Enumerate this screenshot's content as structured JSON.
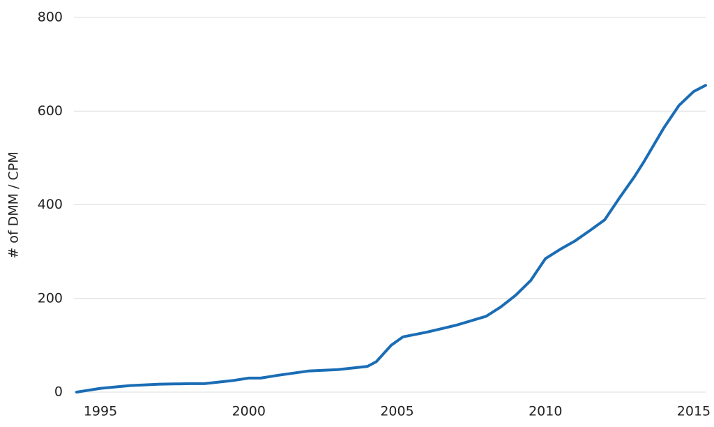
{
  "chart_data": {
    "type": "line",
    "y_label": "# of DMM / CPM",
    "x": [
      1994.2,
      1995,
      1996,
      1997,
      1998,
      1998.5,
      1999.5,
      2000,
      2000.4,
      2001,
      2002,
      2003,
      2004,
      2004.3,
      2004.8,
      2005.2,
      2006,
      2007,
      2008,
      2008.5,
      2009,
      2009.5,
      2010,
      2010.5,
      2011,
      2011.5,
      2012,
      2012.5,
      2013,
      2013.3,
      2014,
      2014.5,
      2015,
      2015.4
    ],
    "series": [
      {
        "color": "#1a6db5",
        "values": [
          0,
          8,
          14,
          17,
          18,
          18,
          25,
          30,
          30,
          36,
          45,
          48,
          55,
          65,
          100,
          118,
          128,
          143,
          162,
          182,
          207,
          238,
          285,
          305,
          323,
          345,
          368,
          415,
          460,
          490,
          565,
          612,
          642,
          655
        ]
      }
    ],
    "xlim": [
      1994.2,
      2015.4
    ],
    "xticks": [
      1995,
      2000,
      2005,
      2010,
      2015
    ],
    "ylim": [
      0,
      800
    ],
    "yticks": [
      0,
      200,
      400,
      600,
      800
    ],
    "grid": true
  }
}
